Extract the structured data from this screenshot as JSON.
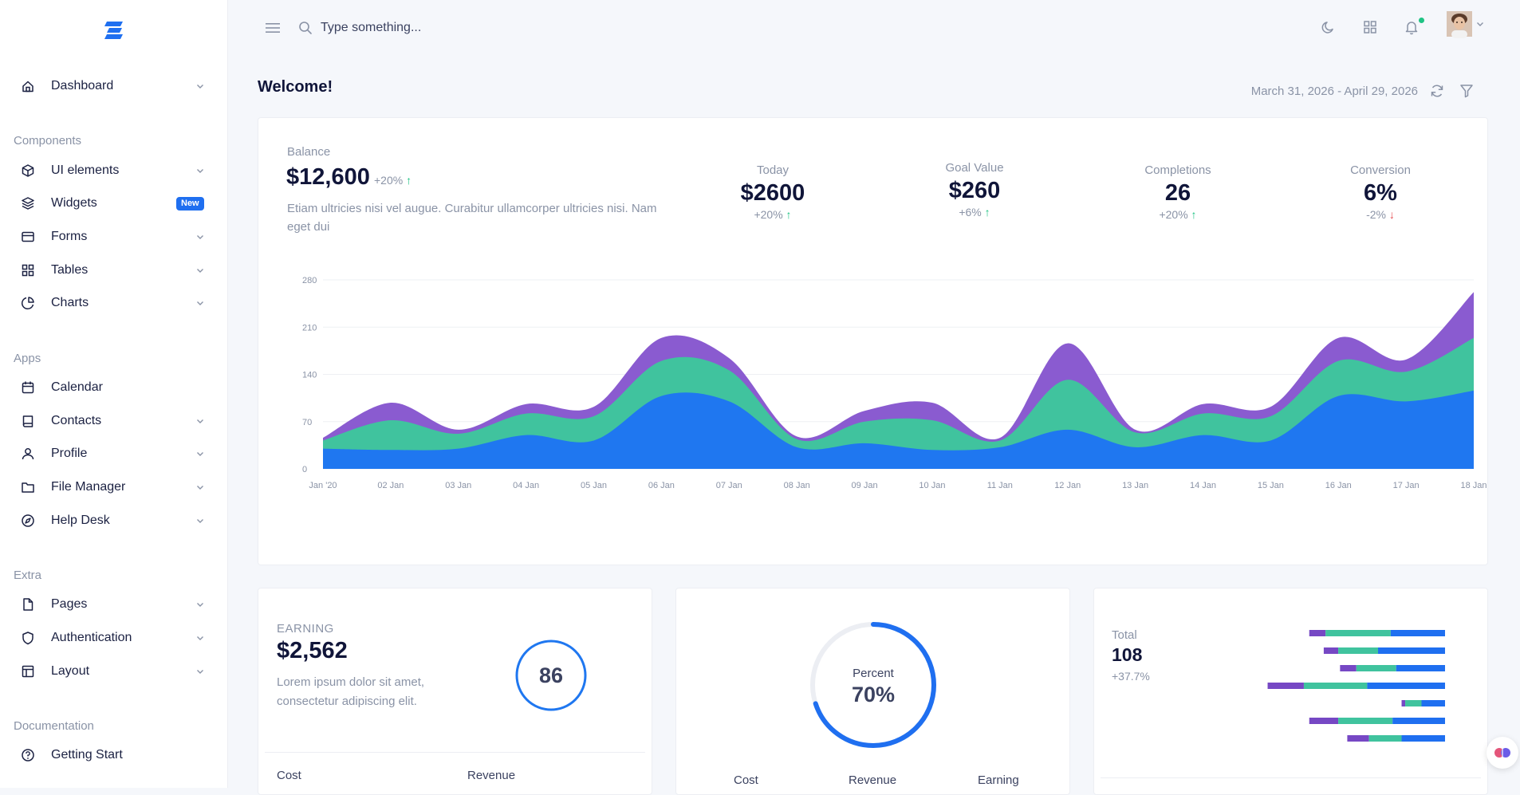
{
  "brand": {
    "logo_icon": "brand-logo-icon",
    "accent": "#1f6ff0"
  },
  "sidebar": {
    "groups": [
      {
        "title": "",
        "items": [
          {
            "label": "Dashboard",
            "icon": "home-icon",
            "chevron": true
          }
        ]
      },
      {
        "title": "Components",
        "items": [
          {
            "label": "UI elements",
            "icon": "box-icon",
            "chevron": true
          },
          {
            "label": "Widgets",
            "icon": "layers-icon",
            "badge": "New"
          },
          {
            "label": "Forms",
            "icon": "credit-card-icon",
            "chevron": true
          },
          {
            "label": "Tables",
            "icon": "grid-icon",
            "chevron": true
          },
          {
            "label": "Charts",
            "icon": "pie-chart-icon",
            "chevron": true
          }
        ]
      },
      {
        "title": "Apps",
        "items": [
          {
            "label": "Calendar",
            "icon": "calendar-icon"
          },
          {
            "label": "Contacts",
            "icon": "book-icon",
            "chevron": true
          },
          {
            "label": "Profile",
            "icon": "user-icon",
            "chevron": true
          },
          {
            "label": "File Manager",
            "icon": "folder-icon",
            "chevron": true
          },
          {
            "label": "Help Desk",
            "icon": "compass-icon",
            "chevron": true
          }
        ]
      },
      {
        "title": "Extra",
        "items": [
          {
            "label": "Pages",
            "icon": "file-icon",
            "chevron": true
          },
          {
            "label": "Authentication",
            "icon": "shield-icon",
            "chevron": true
          },
          {
            "label": "Layout",
            "icon": "layout-icon",
            "chevron": true
          }
        ]
      },
      {
        "title": "Documentation",
        "items": [
          {
            "label": "Getting Start",
            "icon": "help-circle-icon"
          }
        ]
      }
    ]
  },
  "topbar": {
    "search_placeholder": "Type something...",
    "icons": [
      "menu-icon",
      "search-icon",
      "moon-icon",
      "apps-grid-icon",
      "bell-icon",
      "avatar",
      "chevron-down-icon"
    ],
    "notification_dot_color": "#1fc384"
  },
  "header": {
    "welcome": "Welcome!",
    "date_range": "March 31, 2026 - April 29, 2026"
  },
  "overview": {
    "balance_label": "Balance",
    "balance_value": "$12,600",
    "balance_change": "+20%",
    "balance_desc": "Etiam ultricies nisi vel augue. Curabitur ullamcorper ultricies nisi. Nam eget dui",
    "stats": [
      {
        "label": "Today",
        "value": "$2600",
        "change": "+20%",
        "trend": "up"
      },
      {
        "label": "Goal Value",
        "value": "$260",
        "change": "+6%",
        "trend": "up"
      },
      {
        "label": "Completions",
        "value": "26",
        "change": "+20%",
        "trend": "up"
      },
      {
        "label": "Conversion",
        "value": "6%",
        "change": "-2%",
        "trend": "down"
      }
    ]
  },
  "chart_data": {
    "type": "area",
    "stacked": true,
    "title": "",
    "xlabel": "",
    "ylabel": "",
    "ylim": [
      0,
      280
    ],
    "yticks": [
      0,
      70,
      140,
      210,
      280
    ],
    "grid": true,
    "x": [
      "Jan '20",
      "02 Jan",
      "03 Jan",
      "04 Jan",
      "05 Jan",
      "06 Jan",
      "07 Jan",
      "08 Jan",
      "09 Jan",
      "10 Jan",
      "11 Jan",
      "12 Jan",
      "13 Jan",
      "14 Jan",
      "15 Jan",
      "16 Jan",
      "17 Jan",
      "18 Jan"
    ],
    "series": [
      {
        "color": "#1f77f0",
        "values": [
          30,
          28,
          30,
          50,
          42,
          108,
          100,
          32,
          38,
          28,
          32,
          58,
          32,
          50,
          42,
          108,
          100,
          116
        ]
      },
      {
        "color": "#40c39e",
        "values": [
          12,
          44,
          22,
          32,
          36,
          52,
          46,
          12,
          32,
          44,
          10,
          74,
          22,
          32,
          36,
          52,
          44,
          78
        ]
      },
      {
        "color": "#8a5bd0",
        "values": [
          4,
          26,
          6,
          14,
          14,
          34,
          18,
          4,
          16,
          26,
          4,
          54,
          4,
          14,
          14,
          34,
          18,
          68
        ]
      }
    ]
  },
  "earning": {
    "title": "EARNING",
    "value": "$2,562",
    "desc": "Lorem ipsum dolor sit amet, consectetur adipiscing elit.",
    "ring_value": "86",
    "ring_fraction": 1.0,
    "ring_color": "#1f77f0",
    "footer": [
      "Cost",
      "Revenue"
    ]
  },
  "percent": {
    "label": "Percent",
    "value": "70%",
    "fraction": 0.7,
    "ring_color": "#1f6ff0",
    "track_color": "#eceef3",
    "footer": [
      "Cost",
      "Revenue",
      "Earning"
    ]
  },
  "total": {
    "title": "Total",
    "value": "108",
    "change": "+37.7%",
    "bars": [
      [
        9,
        36,
        30
      ],
      [
        8,
        22,
        37
      ],
      [
        9,
        22,
        27
      ],
      [
        20,
        35,
        43
      ],
      [
        2,
        9,
        13
      ],
      [
        16,
        30,
        29
      ],
      [
        12,
        18,
        24
      ]
    ],
    "colors": [
      "#7648c4",
      "#40c39e",
      "#1f6ff0"
    ]
  },
  "floating_button": {
    "icon": "brain-icon"
  }
}
